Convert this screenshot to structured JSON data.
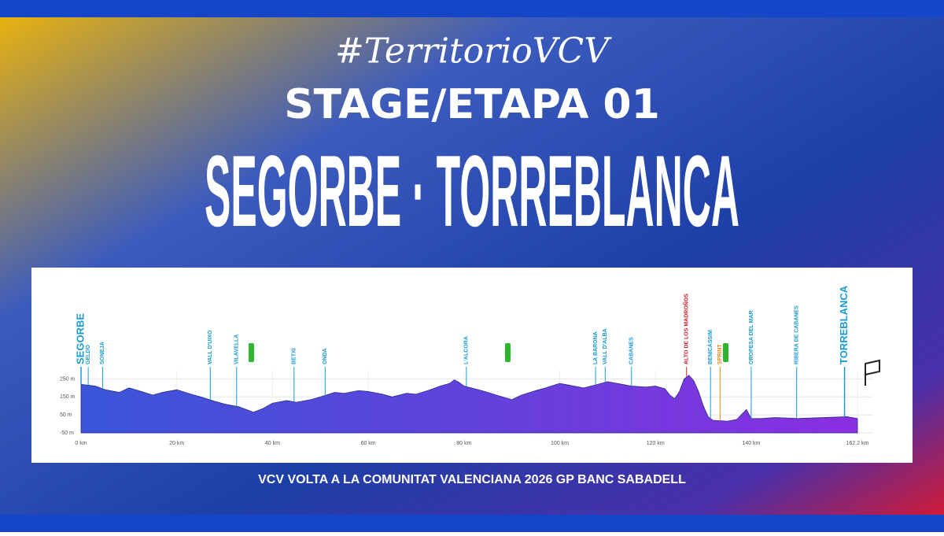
{
  "header": {
    "hashtag": "#TerritorioVCV",
    "stage": "STAGE/ETAPA 01",
    "route": "SEGORBE · TORREBLANCA"
  },
  "footer": "VCV VOLTA A LA COMUNITAT VALENCIANA 2026 GP BANC SABADELL",
  "chart_data": {
    "type": "area",
    "color": "#5a3fd8",
    "x": [
      0,
      3,
      5,
      8,
      10,
      12,
      15,
      17,
      20,
      23,
      25,
      28,
      30,
      33,
      35,
      36,
      38,
      40,
      43,
      45,
      48,
      50,
      53,
      55,
      58,
      60,
      63,
      65,
      68,
      70,
      73,
      75,
      77,
      78,
      79,
      80,
      83,
      85,
      88,
      90,
      92,
      95,
      97,
      100,
      102,
      105,
      108,
      110,
      112,
      115,
      118,
      120,
      122,
      123,
      124,
      125,
      126,
      127,
      128,
      129,
      130,
      131,
      132,
      135,
      137,
      139,
      140,
      142,
      145,
      150,
      155,
      160,
      162.2
    ],
    "values": [
      220,
      210,
      190,
      175,
      200,
      185,
      160,
      175,
      190,
      165,
      150,
      125,
      110,
      95,
      75,
      65,
      85,
      115,
      130,
      120,
      135,
      150,
      175,
      170,
      185,
      180,
      165,
      150,
      170,
      165,
      190,
      210,
      225,
      245,
      230,
      210,
      190,
      175,
      150,
      135,
      160,
      185,
      200,
      225,
      215,
      200,
      220,
      235,
      225,
      210,
      205,
      210,
      195,
      160,
      140,
      180,
      250,
      270,
      240,
      180,
      100,
      40,
      20,
      15,
      25,
      80,
      30,
      30,
      35,
      30,
      35,
      40,
      30
    ],
    "xlim": [
      0,
      162.2
    ],
    "ylim": [
      -50,
      300
    ],
    "xticks": [
      {
        "value": 0,
        "label": "0 km"
      },
      {
        "value": 20,
        "label": "20 km"
      },
      {
        "value": 40,
        "label": "40 km"
      },
      {
        "value": 60,
        "label": "60 km"
      },
      {
        "value": 80,
        "label": "80 km"
      },
      {
        "value": 100,
        "label": "100 km"
      },
      {
        "value": 120,
        "label": "120 km"
      },
      {
        "value": 140,
        "label": "140 km"
      },
      {
        "value": 162.2,
        "label": "162.2 km"
      }
    ],
    "yticks": [
      {
        "value": -50,
        "label": "-50 m"
      },
      {
        "value": 50,
        "label": "50 m"
      },
      {
        "value": 150,
        "label": "150 m"
      },
      {
        "value": 250,
        "label": "250 m"
      }
    ],
    "grid": true,
    "annotations": [
      {
        "label": "SEGORBE",
        "x": 0,
        "color": "#1a9ad6"
      },
      {
        "label": "GELDO",
        "x": 1.5,
        "color": "#1a9ad6"
      },
      {
        "label": "SONEJA",
        "x": 4.5,
        "color": "#1a9ad6"
      },
      {
        "label": "VALL D'UIXO",
        "x": 27,
        "color": "#1a9ad6"
      },
      {
        "label": "VILAVELLA",
        "x": 32.5,
        "color": "#1a9ad6"
      },
      {
        "label": "BETXI",
        "x": 44.5,
        "color": "#1a9ad6"
      },
      {
        "label": "ONDA",
        "x": 51,
        "color": "#1a9ad6"
      },
      {
        "label": "L'ALCORA",
        "x": 80.5,
        "color": "#1a9ad6"
      },
      {
        "label": "LA BARONA",
        "x": 107.5,
        "color": "#1a9ad6"
      },
      {
        "label": "VALL D'ALBA",
        "x": 109.5,
        "color": "#1a9ad6"
      },
      {
        "label": "CABANES",
        "x": 115,
        "color": "#1a9ad6"
      },
      {
        "label": "ALTO DE LOS MADROÑOS",
        "x": 126.5,
        "color": "#d01c2a"
      },
      {
        "label": "BENICÀSSIM",
        "x": 131.5,
        "color": "#1a9ad6"
      },
      {
        "label": "SPRINT",
        "x": 133.5,
        "color": "#f08a1c"
      },
      {
        "label": "OROPESA DEL MAR",
        "x": 140,
        "color": "#1a9ad6"
      },
      {
        "label": "RIBERA DE CABANES",
        "x": 149.5,
        "color": "#1a9ad6"
      },
      {
        "label": "TORREBLANCA",
        "x": 159.5,
        "color": "#1a9ad6"
      }
    ]
  }
}
